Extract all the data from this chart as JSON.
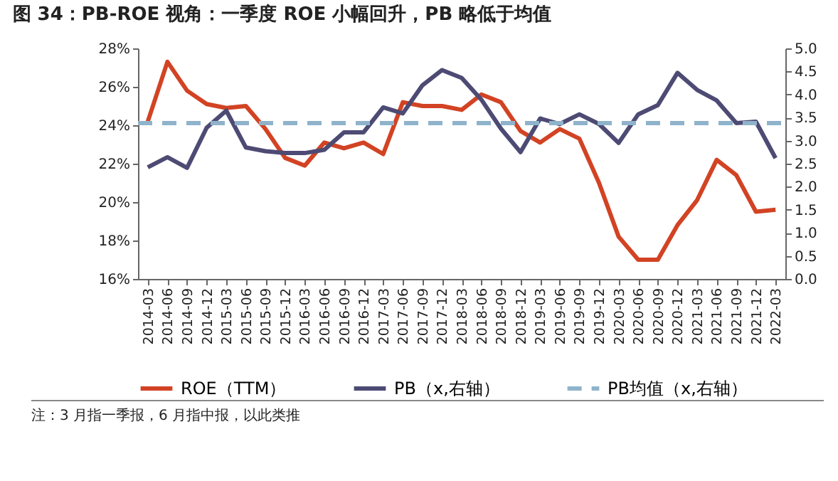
{
  "chart_data": {
    "type": "line",
    "title": "图 34：PB-ROE 视角：一季度 ROE 小幅回升，PB 略低于均值",
    "categories": [
      "2014-03",
      "2014-06",
      "2014-09",
      "2014-12",
      "2015-03",
      "2015-06",
      "2015-09",
      "2015-12",
      "2016-03",
      "2016-06",
      "2016-09",
      "2016-12",
      "2017-03",
      "2017-06",
      "2017-09",
      "2017-12",
      "2018-03",
      "2018-06",
      "2018-09",
      "2018-12",
      "2019-03",
      "2019-06",
      "2019-09",
      "2019-12",
      "2020-03",
      "2020-06",
      "2020-09",
      "2020-12",
      "2021-03",
      "2021-06",
      "2021-09",
      "2021-12",
      "2022-03"
    ],
    "series": [
      {
        "name": "ROE（TTM）",
        "color": "#d24324",
        "values": [
          24.2,
          27.3,
          25.8,
          25.1,
          24.9,
          25.0,
          23.8,
          22.3,
          21.9,
          23.1,
          22.8,
          23.1,
          22.5,
          25.2,
          25.0,
          25.0,
          24.8,
          25.6,
          25.2,
          23.7,
          23.1,
          23.8,
          23.3,
          21.0,
          18.2,
          17.0,
          17.0,
          18.8,
          20.1,
          22.2,
          21.4,
          19.5,
          19.6
        ]
      },
      {
        "name": "PB（x,右轴）",
        "color": "#4d4b74",
        "axis": "y2",
        "values": [
          2.42,
          2.64,
          2.41,
          3.28,
          3.65,
          2.85,
          2.77,
          2.73,
          2.73,
          2.8,
          3.18,
          3.18,
          3.72,
          3.59,
          4.2,
          4.53,
          4.36,
          3.89,
          3.26,
          2.75,
          3.48,
          3.36,
          3.57,
          3.36,
          2.95,
          3.57,
          3.77,
          4.47,
          4.1,
          3.87,
          3.38,
          3.41,
          2.62
        ]
      }
    ],
    "ref_lines": [
      {
        "axis": "y2",
        "value": 3.38,
        "label": "PB均值（x,右轴）",
        "color": "#8fb3cb",
        "line_style": "dashed"
      }
    ],
    "ylim": [
      16,
      28
    ],
    "yticks": [
      {
        "value": 16,
        "label": "16%"
      },
      {
        "value": 18,
        "label": "18%"
      },
      {
        "value": 20,
        "label": "20%"
      },
      {
        "value": 22,
        "label": "22%"
      },
      {
        "value": 24,
        "label": "24%"
      },
      {
        "value": 26,
        "label": "26%"
      },
      {
        "value": 28,
        "label": "28%"
      }
    ],
    "y2lim": [
      0,
      5
    ],
    "y2ticks": [
      {
        "value": 0,
        "label": "0.0"
      },
      {
        "value": 0.5,
        "label": "0.5"
      },
      {
        "value": 1,
        "label": "1.0"
      },
      {
        "value": 1.5,
        "label": "1.5"
      },
      {
        "value": 2,
        "label": "2.0"
      },
      {
        "value": 2.5,
        "label": "2.5"
      },
      {
        "value": 3,
        "label": "3.0"
      },
      {
        "value": 3.5,
        "label": "3.5"
      },
      {
        "value": 4,
        "label": "4.0"
      },
      {
        "value": 4.5,
        "label": "4.5"
      },
      {
        "value": 5,
        "label": "5.0"
      }
    ],
    "legend": "bottom",
    "grid": false,
    "marker": "none",
    "line_style": "solid",
    "annotations": [
      "注：3 月指一季报，6 月指中报，以此类推"
    ]
  }
}
